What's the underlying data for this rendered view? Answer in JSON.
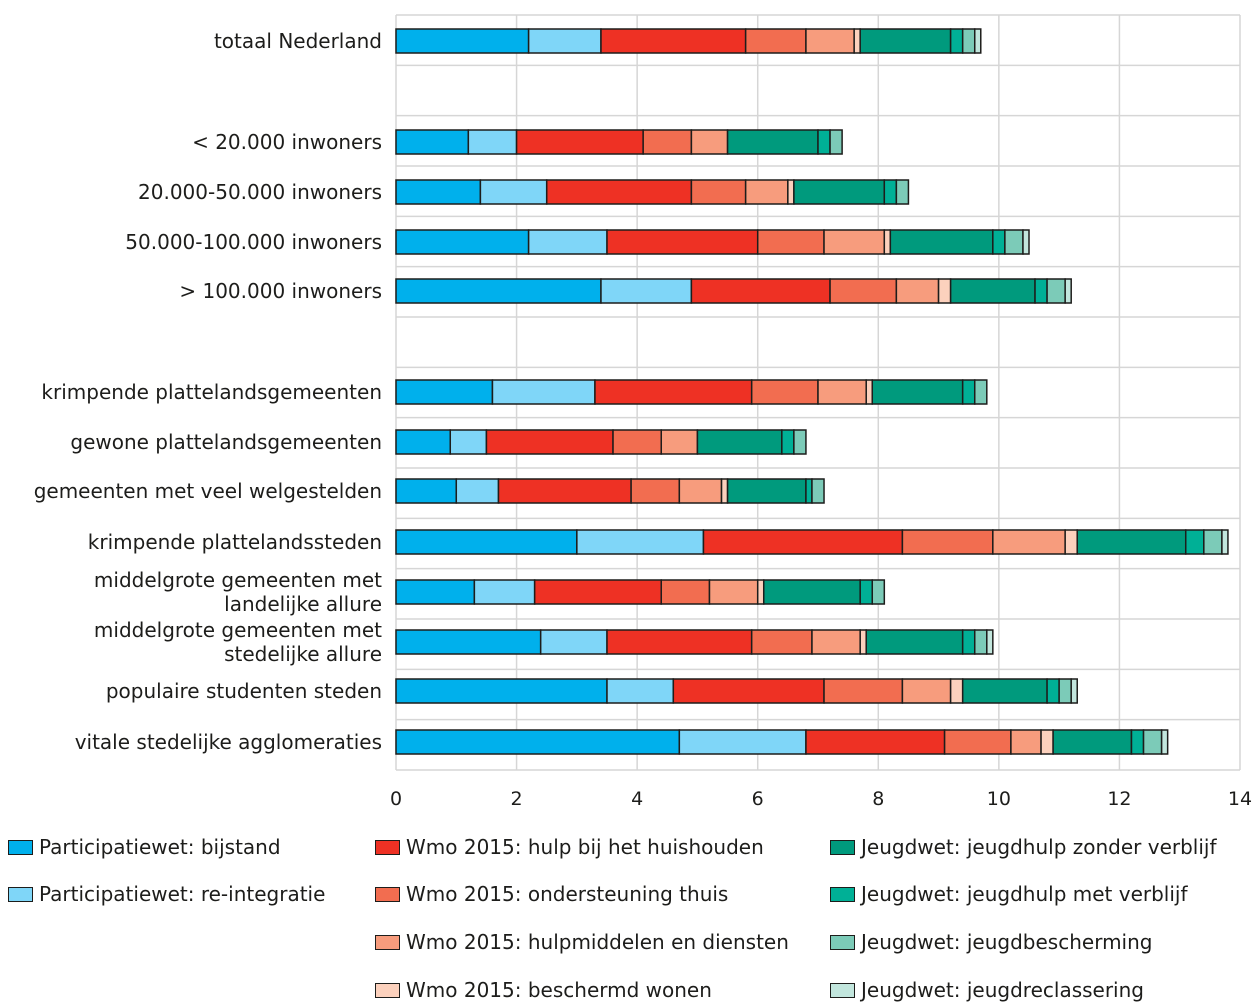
{
  "chart_data": {
    "type": "bar",
    "orientation": "horizontal",
    "stacked": true,
    "xlim": [
      0,
      14
    ],
    "x_ticks": [
      "0",
      "2",
      "4",
      "6",
      "8",
      "10",
      "12",
      "14"
    ],
    "grid": true,
    "legend_position": "bottom",
    "categories": [
      "totaal Nederland",
      "< 20.000 inwoners",
      "20.000-50.000 inwoners",
      "50.000-100.000 inwoners",
      "> 100.000 inwoners",
      "krimpende plattelandsgemeenten",
      "gewone plattelandsgemeenten",
      "gemeenten met veel welgestelden",
      "krimpende plattelandssteden",
      "middelgrote gemeenten met landelijke allure",
      "middelgrote gemeenten met stedelijke allure",
      "populaire studenten steden",
      "vitale stedelijke agglomeraties"
    ],
    "category_lines": [
      [
        "totaal Nederland"
      ],
      [
        "< 20.000 inwoners"
      ],
      [
        "20.000-50.000 inwoners"
      ],
      [
        "50.000-100.000 inwoners"
      ],
      [
        "> 100.000 inwoners"
      ],
      [
        "krimpende plattelandsgemeenten"
      ],
      [
        "gewone plattelandsgemeenten"
      ],
      [
        "gemeenten met veel welgestelden"
      ],
      [
        "krimpende plattelandssteden"
      ],
      [
        "middelgrote gemeenten met",
        "landelijke allure"
      ],
      [
        "middelgrote gemeenten met",
        "stedelijke allure"
      ],
      [
        "populaire studenten steden"
      ],
      [
        "vitale stedelijke agglomeraties"
      ]
    ],
    "series": [
      {
        "name": "Participatiewet: bijstand",
        "color": "#00b0ec",
        "values": [
          2.2,
          1.2,
          1.4,
          2.2,
          3.4,
          1.6,
          0.9,
          1.0,
          3.0,
          1.3,
          2.4,
          3.5,
          4.7
        ]
      },
      {
        "name": "Participatiewet: re-integratie",
        "color": "#7fd6f8",
        "values": [
          1.2,
          0.8,
          1.1,
          1.3,
          1.5,
          1.7,
          0.6,
          0.7,
          2.1,
          1.0,
          1.1,
          1.1,
          2.1
        ]
      },
      {
        "name": "Wmo 2015: hulp bij het huishouden",
        "color": "#ee3124",
        "values": [
          2.4,
          2.1,
          2.4,
          2.5,
          2.3,
          2.6,
          2.1,
          2.2,
          3.3,
          2.1,
          2.4,
          2.5,
          2.3
        ]
      },
      {
        "name": "Wmo 2015: ondersteuning thuis",
        "color": "#f26d50",
        "values": [
          1.0,
          0.8,
          0.9,
          1.1,
          1.1,
          1.1,
          0.8,
          0.8,
          1.5,
          0.8,
          1.0,
          1.3,
          1.1
        ]
      },
      {
        "name": "Wmo 2015: hulpmiddelen en diensten",
        "color": "#f79c7d",
        "values": [
          0.8,
          0.6,
          0.7,
          1.0,
          0.7,
          0.8,
          0.6,
          0.7,
          1.2,
          0.8,
          0.8,
          0.8,
          0.5
        ]
      },
      {
        "name": "Wmo 2015: beschermd wonen",
        "color": "#fcd1bd",
        "values": [
          0.1,
          0.0,
          0.1,
          0.1,
          0.2,
          0.1,
          0.0,
          0.1,
          0.2,
          0.1,
          0.1,
          0.2,
          0.2
        ]
      },
      {
        "name": "Jeugdwet: jeugdhulp zonder verblijf",
        "color": "#009a7d",
        "values": [
          1.5,
          1.5,
          1.5,
          1.7,
          1.4,
          1.5,
          1.4,
          1.3,
          1.8,
          1.6,
          1.6,
          1.4,
          1.3
        ]
      },
      {
        "name": "Jeugdwet: jeugdhulp met verblijf",
        "color": "#00b096",
        "values": [
          0.2,
          0.2,
          0.2,
          0.2,
          0.2,
          0.2,
          0.2,
          0.1,
          0.3,
          0.2,
          0.2,
          0.2,
          0.2
        ]
      },
      {
        "name": "Jeugdwet: jeugdbescherming",
        "color": "#7ccbb8",
        "values": [
          0.2,
          0.2,
          0.2,
          0.3,
          0.3,
          0.2,
          0.2,
          0.2,
          0.3,
          0.2,
          0.2,
          0.2,
          0.3
        ]
      },
      {
        "name": "Jeugdwet: jeugdreclassering",
        "color": "#c2e6dd",
        "values": [
          0.1,
          0.0,
          0.0,
          0.1,
          0.1,
          0.0,
          0.0,
          0.0,
          0.1,
          0.0,
          0.1,
          0.1,
          0.1
        ]
      }
    ]
  }
}
